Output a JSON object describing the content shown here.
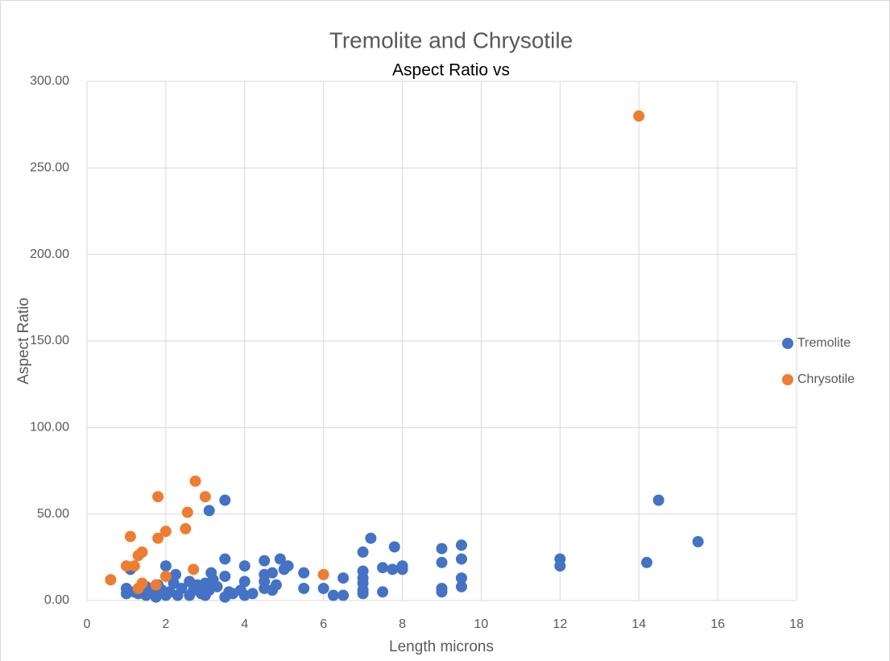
{
  "chart_data": {
    "type": "scatter",
    "title": "Tremolite and Chrysotile",
    "subtitle": "Aspect Ratio vs",
    "x_label": "Length microns",
    "y_label": "Aspect Ratio",
    "xlim": [
      0,
      18
    ],
    "xticks": [
      0,
      2,
      4,
      6,
      8,
      10,
      12,
      14,
      16,
      18
    ],
    "ylim": [
      0,
      300
    ],
    "yticks": [
      {
        "value": 0,
        "label": "0.00"
      },
      {
        "value": 50,
        "label": "50.00"
      },
      {
        "value": 100,
        "label": "100.00"
      },
      {
        "value": 150,
        "label": "150.00"
      },
      {
        "value": 200,
        "label": "200.00"
      },
      {
        "value": 250,
        "label": "250.00"
      },
      {
        "value": 300,
        "label": "300.00"
      }
    ],
    "grid": true,
    "legend": "right",
    "series": [
      {
        "name": "Tremolite",
        "color": "#4472c4",
        "x": [
          1,
          1,
          1.1,
          1.2,
          1.3,
          1.5,
          1.5,
          1.7,
          1.75,
          1.8,
          1.9,
          2,
          2,
          2.1,
          2.2,
          2.25,
          2.3,
          2.4,
          2.6,
          2.6,
          2.7,
          2.8,
          2.9,
          3,
          3,
          3.1,
          3.1,
          3.15,
          3.2,
          3.3,
          3.5,
          3.5,
          3.5,
          3.5,
          3.6,
          3.7,
          3.9,
          4,
          4,
          4,
          4.2,
          4.5,
          4.5,
          4.5,
          4.5,
          4.7,
          4.7,
          4.8,
          4.9,
          5,
          5.1,
          5.5,
          5.5,
          6,
          6.25,
          6.5,
          6.5,
          7,
          7,
          7,
          7,
          7,
          7,
          7.2,
          7.5,
          7.5,
          7.75,
          7.8,
          8,
          8,
          9,
          9,
          9,
          9,
          9.5,
          9.5,
          9.5,
          9.5,
          12,
          12,
          14.2,
          14.5,
          15.5
        ],
        "values": [
          7,
          4,
          18,
          5,
          4,
          3,
          8,
          5,
          2,
          9,
          6,
          3,
          20,
          5,
          10,
          15,
          3,
          7,
          3,
          11,
          6,
          9,
          4,
          3,
          10,
          52,
          6,
          16,
          12,
          8,
          58,
          24,
          14,
          2,
          5,
          4,
          6,
          20,
          11,
          3,
          4,
          23,
          15,
          11,
          7,
          16,
          6,
          9,
          24,
          18,
          20,
          16,
          7,
          7,
          3,
          3,
          13,
          28,
          17,
          13,
          10,
          6,
          4,
          36,
          19,
          5,
          18,
          31,
          20,
          18,
          30,
          22,
          7,
          5,
          32,
          24,
          13,
          8,
          24,
          20,
          22,
          58,
          34
        ]
      },
      {
        "name": "Chrysotile",
        "color": "#ed7d31",
        "x": [
          0.6,
          1.0,
          1.1,
          1.2,
          1.3,
          1.3,
          1.4,
          1.4,
          1.8,
          1.8,
          1.75,
          2.0,
          2.0,
          2.5,
          2.55,
          2.7,
          2.75,
          3.0,
          6.0,
          14.0
        ],
        "values": [
          12,
          20,
          37,
          20,
          26,
          7,
          28,
          10,
          60,
          36,
          9,
          40,
          14,
          41.5,
          51,
          18,
          69,
          60,
          15,
          280
        ]
      }
    ]
  }
}
